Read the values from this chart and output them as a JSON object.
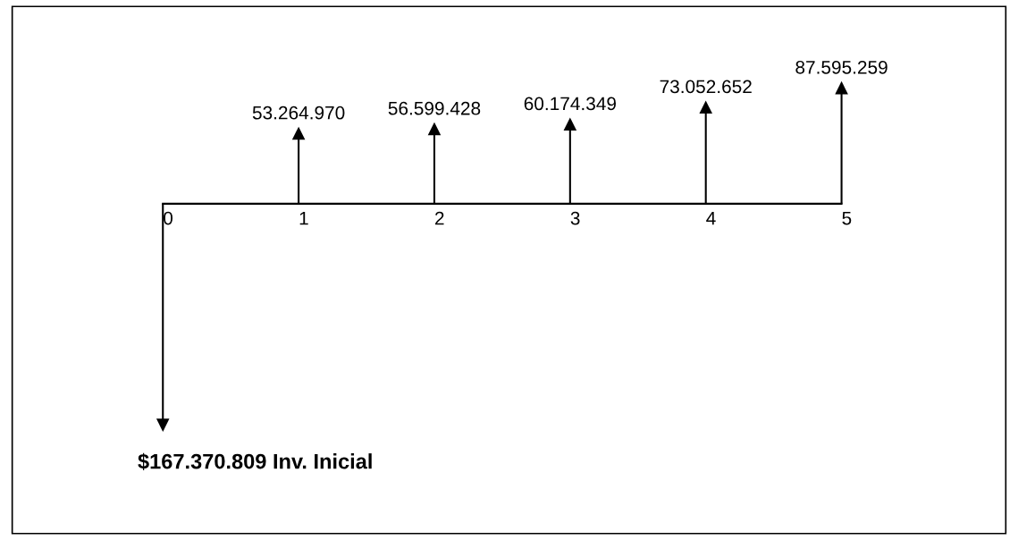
{
  "chart_data": {
    "type": "lollipop",
    "categories": [
      "0",
      "1",
      "2",
      "3",
      "4",
      "5"
    ],
    "values": [
      -167370809,
      53264970,
      56599428,
      60174349,
      73052652,
      87595259
    ],
    "value_labels": [
      null,
      "53.264.970",
      "56.599.428",
      "60.174.349",
      "73.052.652",
      "87.595.259"
    ],
    "annotations": [
      "$167.370.809 Inv. Inicial"
    ],
    "color": "#000000"
  }
}
